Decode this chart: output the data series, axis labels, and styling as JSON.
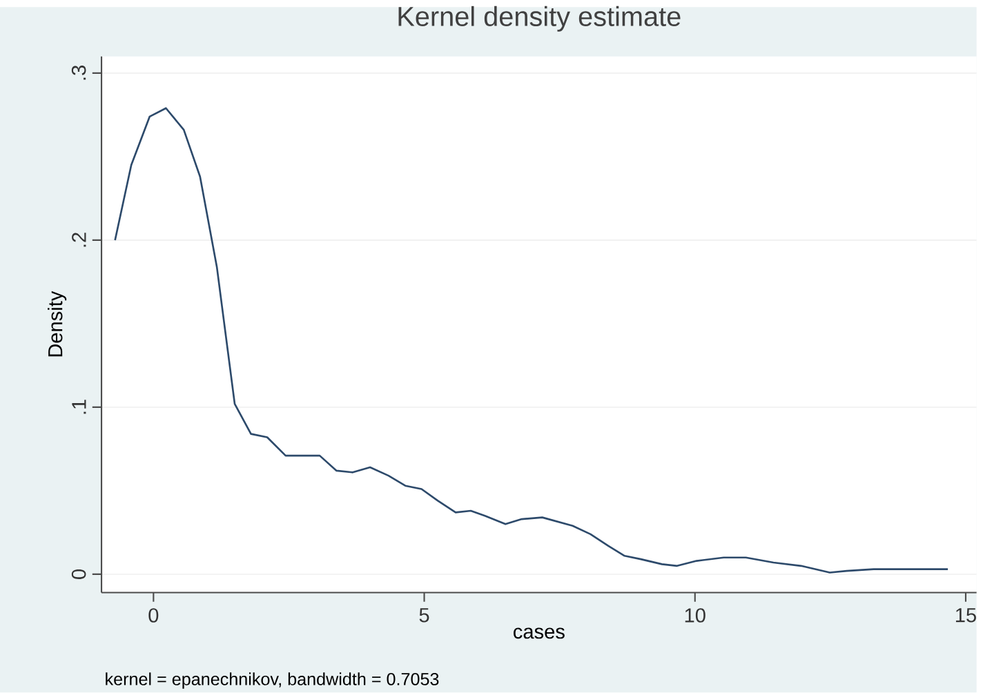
{
  "chart_data": {
    "type": "line",
    "title": "Kernel density estimate",
    "xlabel": "cases",
    "ylabel": "Density",
    "annotations": [
      "kernel = epanechnikov, bandwidth = 0.7053"
    ],
    "x": [
      -0.71,
      -0.41,
      -0.07,
      0.23,
      0.56,
      0.86,
      1.17,
      1.5,
      1.8,
      2.1,
      2.44,
      3.07,
      3.38,
      3.68,
      4.0,
      4.34,
      4.65,
      4.95,
      5.25,
      5.58,
      5.86,
      6.12,
      6.5,
      6.8,
      7.18,
      7.74,
      8.07,
      8.4,
      8.7,
      9.0,
      9.39,
      9.67,
      10.03,
      10.53,
      10.94,
      11.45,
      11.96,
      12.49,
      12.8,
      13.3,
      13.9,
      14.67
    ],
    "series": [
      {
        "color": "#2d4a6b",
        "values": [
          0.2,
          0.245,
          0.274,
          0.279,
          0.266,
          0.238,
          0.184,
          0.102,
          0.084,
          0.082,
          0.071,
          0.071,
          0.062,
          0.061,
          0.064,
          0.059,
          0.053,
          0.051,
          0.044,
          0.037,
          0.038,
          0.035,
          0.03,
          0.033,
          0.034,
          0.029,
          0.024,
          0.017,
          0.011,
          0.009,
          0.006,
          0.005,
          0.008,
          0.01,
          0.01,
          0.007,
          0.005,
          0.001,
          0.002,
          0.003,
          0.003,
          0.003
        ]
      }
    ],
    "xlim": [
      -0.96,
      15.2
    ],
    "ylim": [
      -0.011,
      0.31
    ],
    "xticks": [
      0,
      5,
      10,
      15
    ],
    "yticks": [
      {
        "value": 0,
        "label": "0"
      },
      {
        "value": 0.1,
        "label": ".1"
      },
      {
        "value": 0.2,
        "label": ".2"
      },
      {
        "value": 0.3,
        "label": ".3"
      }
    ],
    "grid": "y",
    "marker": "none",
    "line_style": "solid"
  }
}
